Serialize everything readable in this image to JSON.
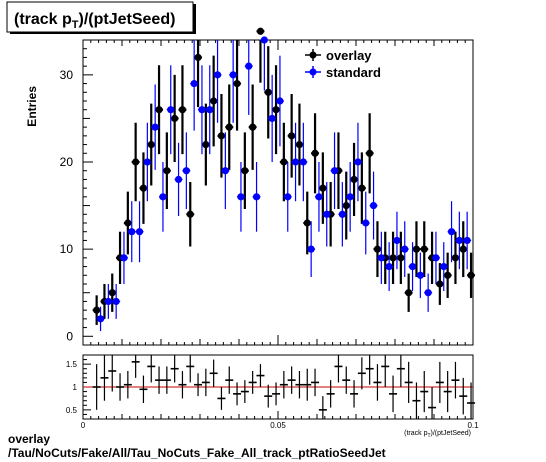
{
  "title_main": "(track p",
  "title_sub": "T",
  "title_rest": ")/(ptJetSeed)",
  "footer": {
    "line1": "overlay",
    "line2": "/Tau/NoCuts/Fake/All/Tau_NoCuts_Fake_All_track_ptRatioSeedJet"
  },
  "chart_data": [
    {
      "type": "scatter",
      "ylabel": "Entries",
      "xlim": [
        0,
        0.1
      ],
      "ylim": [
        -1,
        34
      ],
      "yticks": [
        0,
        10,
        20,
        30
      ],
      "legend_position": "top-right",
      "colors": {
        "overlay": "#000000",
        "standard": "#0000ff"
      },
      "series": [
        {
          "name": "overlay",
          "x": [
            0.0035,
            0.0055,
            0.0075,
            0.0095,
            0.0115,
            0.0135,
            0.0155,
            0.0175,
            0.0195,
            0.0215,
            0.0235,
            0.0255,
            0.0275,
            0.0295,
            0.0315,
            0.0335,
            0.0355,
            0.0375,
            0.0395,
            0.0415,
            0.0435,
            0.0455,
            0.0475,
            0.0495,
            0.0515,
            0.0535,
            0.0555,
            0.0575,
            0.0595,
            0.0615,
            0.0635,
            0.0655,
            0.0675,
            0.0695,
            0.0715,
            0.0735,
            0.0755,
            0.0775,
            0.0795,
            0.0815,
            0.0835,
            0.0855,
            0.0875,
            0.0895,
            0.0915,
            0.0935,
            0.0955,
            0.0975,
            0.0995
          ],
          "y": [
            3,
            4,
            5,
            9,
            13,
            20,
            17,
            22,
            26,
            19,
            25,
            26,
            14,
            32,
            22,
            27,
            23,
            24,
            29,
            19,
            24,
            35,
            28,
            26,
            20,
            23,
            22,
            13,
            21,
            17,
            14,
            19,
            15,
            18,
            17,
            21,
            10,
            9,
            9,
            9,
            5,
            10,
            10,
            9,
            6,
            7,
            9,
            10,
            7
          ],
          "err": [
            1.7,
            2,
            2.2,
            3,
            3.6,
            4.5,
            4.1,
            4.7,
            5.1,
            4.4,
            5,
            5.1,
            3.7,
            5.7,
            4.7,
            5.2,
            4.8,
            4.9,
            5.4,
            4.4,
            4.9,
            5.9,
            5.3,
            5.1,
            4.5,
            4.8,
            4.7,
            3.6,
            4.6,
            4.1,
            3.7,
            4.4,
            3.9,
            4.2,
            4.1,
            4.6,
            3.2,
            3,
            3,
            3,
            2.2,
            3.2,
            3.2,
            3,
            2.4,
            2.6,
            3,
            3.2,
            2.6
          ]
        },
        {
          "name": "standard",
          "x": [
            0.0045,
            0.0065,
            0.0085,
            0.0105,
            0.0125,
            0.0145,
            0.0165,
            0.0185,
            0.0205,
            0.0225,
            0.0245,
            0.0265,
            0.0285,
            0.0305,
            0.0325,
            0.0345,
            0.0365,
            0.0385,
            0.0405,
            0.0425,
            0.0445,
            0.0465,
            0.0485,
            0.0505,
            0.0525,
            0.0545,
            0.0565,
            0.0585,
            0.0605,
            0.0625,
            0.0645,
            0.0665,
            0.0685,
            0.0705,
            0.0725,
            0.0745,
            0.0765,
            0.0785,
            0.0805,
            0.0825,
            0.0845,
            0.0865,
            0.0885,
            0.0905,
            0.0925,
            0.0945,
            0.0965,
            0.0985
          ],
          "y": [
            2,
            4,
            4,
            9,
            12,
            12,
            20,
            24,
            16,
            26,
            18,
            19,
            29,
            26,
            26,
            30,
            19,
            30,
            16,
            31,
            16,
            34,
            25,
            27,
            16,
            20,
            20,
            10,
            16,
            14,
            19,
            14,
            16,
            20,
            13,
            15,
            9,
            8,
            11,
            10,
            8,
            7,
            5,
            9,
            8,
            12,
            11,
            11
          ],
          "err": [
            1.4,
            2,
            2,
            3,
            3.5,
            3.5,
            4.5,
            4.9,
            4,
            5.1,
            4.2,
            4.4,
            5.4,
            5.1,
            5.1,
            5.5,
            4.4,
            5.5,
            4,
            5.6,
            4,
            5.8,
            5,
            5.2,
            4,
            4.5,
            4.5,
            3.2,
            4,
            3.7,
            4.4,
            3.7,
            4,
            4.5,
            3.6,
            3.9,
            3,
            2.8,
            3.3,
            3.2,
            2.8,
            2.6,
            2.2,
            3,
            2.8,
            3.5,
            3.3,
            3.3
          ]
        }
      ]
    },
    {
      "type": "scatter",
      "xlabel": "(track p_{T})/(ptJetSeed)",
      "xlim": [
        0,
        0.1
      ],
      "ylim": [
        0.3,
        1.7
      ],
      "yticks": [
        0.5,
        1,
        1.5
      ],
      "xticks": [
        0,
        0.05,
        0.1
      ],
      "reference_line": 1,
      "colors": {
        "ratio": "#000000",
        "reference": "#cc0000"
      },
      "series": [
        {
          "name": "ratio",
          "x": [
            0.0035,
            0.0055,
            0.0075,
            0.0095,
            0.0115,
            0.0135,
            0.0155,
            0.0175,
            0.0195,
            0.0215,
            0.0235,
            0.0255,
            0.0275,
            0.0295,
            0.0315,
            0.0335,
            0.0355,
            0.0375,
            0.0395,
            0.0415,
            0.0435,
            0.0455,
            0.0475,
            0.0495,
            0.0515,
            0.0535,
            0.0555,
            0.0575,
            0.0595,
            0.0615,
            0.0635,
            0.0655,
            0.0675,
            0.0695,
            0.0715,
            0.0735,
            0.0755,
            0.0775,
            0.0795,
            0.0815,
            0.0835,
            0.0855,
            0.0875,
            0.0895,
            0.0915,
            0.0935,
            0.0955,
            0.0975,
            0.0995
          ],
          "y": [
            1,
            1.2,
            1.35,
            1,
            1.05,
            1.55,
            0.95,
            1.45,
            1.15,
            1.15,
            1.4,
            1.05,
            1.45,
            1.05,
            1.1,
            1.3,
            0.75,
            1.15,
            0.85,
            0.9,
            1.1,
            1.25,
            0.8,
            0.85,
            1.05,
            1.15,
            1.05,
            1.05,
            1.1,
            0.5,
            0.85,
            1.45,
            1.15,
            0.85,
            1.3,
            1.4,
            1.1,
            1.45,
            0.85,
            1.4,
            1.1,
            0.7,
            0.9,
            0.55,
            1.1,
            0.9,
            1.15,
            0.8,
            0.65
          ],
          "err": [
            0.5,
            0.5,
            0.45,
            0.3,
            0.3,
            0.35,
            0.3,
            0.35,
            0.3,
            0.3,
            0.3,
            0.3,
            0.35,
            0.25,
            0.3,
            0.3,
            0.25,
            0.3,
            0.25,
            0.25,
            0.25,
            0.25,
            0.25,
            0.25,
            0.3,
            0.3,
            0.3,
            0.35,
            0.3,
            0.3,
            0.3,
            0.35,
            0.3,
            0.3,
            0.35,
            0.35,
            0.4,
            0.45,
            0.4,
            0.4,
            0.45,
            0.4,
            0.45,
            0.45,
            0.45,
            0.45,
            0.4,
            0.4,
            0.45
          ]
        }
      ]
    }
  ]
}
